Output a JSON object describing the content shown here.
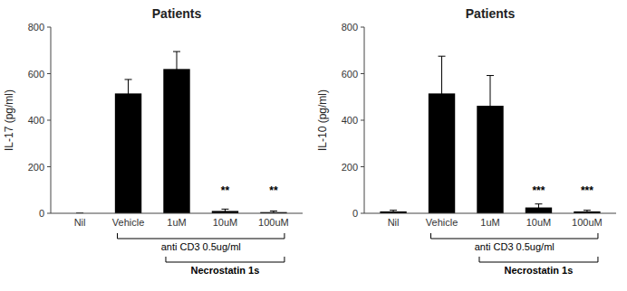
{
  "chart_data": [
    {
      "type": "bar",
      "title": "Patients",
      "y_label": "IL-17 (pg/ml)",
      "categories": [
        "Nil",
        "Vehicle",
        "1uM",
        "10uM",
        "100uM"
      ],
      "values": [
        0,
        515,
        620,
        10,
        5
      ],
      "errors": [
        0,
        60,
        75,
        8,
        5
      ],
      "color": "#000000",
      "ylim": [
        0,
        800
      ],
      "yticks": [
        0,
        200,
        400,
        600,
        800
      ],
      "grid": false,
      "annotations": [
        {
          "text": "**",
          "category": "10uM",
          "y": 75
        },
        {
          "text": "**",
          "category": "100uM",
          "y": 75
        }
      ],
      "brackets": [
        {
          "text": "anti CD3 0.5ug/ml",
          "from": "Vehicle",
          "to": "100uM",
          "bold": false
        },
        {
          "text": "Necrostatin 1s",
          "from": "1uM",
          "to": "100uM",
          "bold": true
        }
      ]
    },
    {
      "type": "bar",
      "title": "Patients",
      "y_label": "IL-10 (pg/ml)",
      "categories": [
        "Nil",
        "Vehicle",
        "1uM",
        "10uM",
        "100uM"
      ],
      "values": [
        8,
        515,
        462,
        25,
        8
      ],
      "errors": [
        5,
        160,
        130,
        15,
        5
      ],
      "color": "#000000",
      "ylim": [
        0,
        800
      ],
      "yticks": [
        0,
        200,
        400,
        600,
        800
      ],
      "grid": false,
      "annotations": [
        {
          "text": "***",
          "category": "10uM",
          "y": 75
        },
        {
          "text": "***",
          "category": "100uM",
          "y": 75
        }
      ],
      "brackets": [
        {
          "text": "anti CD3 0.5ug/ml",
          "from": "Vehicle",
          "to": "100uM",
          "bold": false
        },
        {
          "text": "Necrostatin 1s",
          "from": "1uM",
          "to": "100uM",
          "bold": true
        }
      ]
    }
  ]
}
